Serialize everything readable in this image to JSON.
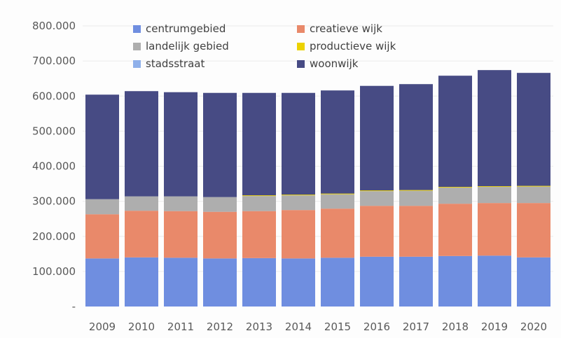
{
  "chart_data": {
    "type": "bar",
    "stacked": true,
    "title": "",
    "xlabel": "",
    "ylabel": "",
    "ylim": [
      0,
      800000
    ],
    "y_ticks": [
      {
        "value": 0,
        "label": "-"
      },
      {
        "value": 100000,
        "label": "100.000"
      },
      {
        "value": 200000,
        "label": "200.000"
      },
      {
        "value": 300000,
        "label": "300.000"
      },
      {
        "value": 400000,
        "label": "400.000"
      },
      {
        "value": 500000,
        "label": "500.000"
      },
      {
        "value": 600000,
        "label": "600.000"
      },
      {
        "value": 700000,
        "label": "700.000"
      },
      {
        "value": 800000,
        "label": "800.000"
      }
    ],
    "grid": true,
    "legend_position": "top",
    "categories": [
      "2009",
      "2010",
      "2011",
      "2012",
      "2013",
      "2014",
      "2015",
      "2016",
      "2017",
      "2018",
      "2019",
      "2020"
    ],
    "series": [
      {
        "name": "centrumgebied",
        "color": "#6f8ee0",
        "values": [
          137000,
          140000,
          139000,
          137000,
          138000,
          137000,
          139000,
          142000,
          142000,
          144000,
          145000,
          140000
        ]
      },
      {
        "name": "creatieve wijk",
        "color": "#e9896a",
        "values": [
          126000,
          133000,
          133000,
          133000,
          134000,
          138000,
          140000,
          145000,
          145000,
          149000,
          150000,
          155000
        ]
      },
      {
        "name": "landelijk gebied",
        "color": "#aeaeae",
        "values": [
          43000,
          41000,
          42000,
          42000,
          43000,
          42000,
          41000,
          42000,
          43000,
          46000,
          46000,
          47000
        ]
      },
      {
        "name": "productieve wijk",
        "color": "#ecd200",
        "values": [
          0,
          0,
          0,
          0,
          2000,
          2000,
          2000,
          2000,
          2000,
          2000,
          2000,
          2000
        ]
      },
      {
        "name": "stadsstraat",
        "color": "#8fb0ea",
        "values": [
          0,
          0,
          0,
          0,
          0,
          0,
          0,
          0,
          0,
          0,
          0,
          0
        ]
      },
      {
        "name": "woonwijk",
        "color": "#474b84",
        "values": [
          298000,
          300000,
          297000,
          297000,
          292000,
          290000,
          294000,
          298000,
          302000,
          317000,
          331000,
          322000
        ]
      }
    ]
  }
}
